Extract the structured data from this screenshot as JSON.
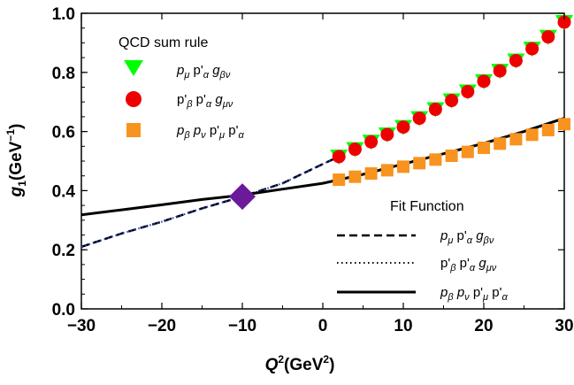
{
  "chart_data": {
    "type": "line",
    "xlabel": "Q²(GeV²)",
    "ylabel": "g₁(GeV⁻¹)",
    "xlim": [
      -30,
      30
    ],
    "ylim": [
      0,
      1.0
    ],
    "x_ticks": [
      "−30",
      "−20",
      "−10",
      "0",
      "10",
      "20",
      "30"
    ],
    "y_ticks": [
      "0.0",
      "0.2",
      "0.4",
      "0.6",
      "0.8",
      "1.0"
    ],
    "grid": false,
    "legend_sumrule": {
      "title": "QCD sum rule",
      "placement": "top-left",
      "entries": [
        "p_μ p'_α g_βν",
        "p'_β p'_α g_μν",
        "p_β p_ν p'_μ p'_α"
      ]
    },
    "legend_fit": {
      "title": "Fit Function",
      "placement": "bottom-right",
      "entries": [
        "p_μ p'_α g_βν",
        "p'_β p'_α g_μν",
        "p_β p_ν p'_μ p'_α"
      ]
    },
    "series": [
      {
        "kind": "points",
        "marker": "triangle-down",
        "color": "#00ff00",
        "x": [
          2,
          4,
          6,
          8,
          10,
          12,
          14,
          16,
          18,
          20,
          22,
          24,
          26,
          28,
          30
        ],
        "values": [
          0.515,
          0.54,
          0.565,
          0.59,
          0.615,
          0.645,
          0.675,
          0.705,
          0.735,
          0.77,
          0.805,
          0.84,
          0.88,
          0.92,
          0.97
        ]
      },
      {
        "kind": "points",
        "marker": "circle",
        "color": "#ee0000",
        "x": [
          2,
          4,
          6,
          8,
          10,
          12,
          14,
          16,
          18,
          20,
          22,
          24,
          26,
          28,
          30
        ],
        "values": [
          0.515,
          0.54,
          0.565,
          0.59,
          0.615,
          0.645,
          0.675,
          0.705,
          0.735,
          0.77,
          0.805,
          0.84,
          0.88,
          0.92,
          0.97
        ]
      },
      {
        "kind": "points",
        "marker": "square",
        "color": "#f7931e",
        "x": [
          2,
          4,
          6,
          8,
          10,
          12,
          14,
          16,
          18,
          20,
          22,
          24,
          26,
          28,
          30
        ],
        "values": [
          0.437,
          0.447,
          0.458,
          0.469,
          0.481,
          0.493,
          0.505,
          0.518,
          0.531,
          0.545,
          0.559,
          0.574,
          0.589,
          0.605,
          0.625
        ]
      },
      {
        "kind": "line",
        "style": "dashed",
        "color": "#000000",
        "x": [
          -30,
          -25,
          -20,
          -15,
          -10,
          -5,
          0,
          2
        ],
        "values": [
          0.21,
          0.255,
          0.295,
          0.34,
          0.38,
          0.425,
          0.49,
          0.515
        ]
      },
      {
        "kind": "line",
        "style": "dotted",
        "color": "#1f3fcf",
        "x": [
          -30,
          -25,
          -20,
          -15,
          -10,
          -5,
          0,
          2
        ],
        "values": [
          0.21,
          0.255,
          0.295,
          0.34,
          0.38,
          0.425,
          0.49,
          0.515
        ]
      },
      {
        "kind": "line",
        "style": "solid",
        "color": "#000000",
        "x": [
          -30,
          -25,
          -20,
          -15,
          -10,
          -5,
          0,
          5,
          10,
          15,
          20,
          25,
          30
        ],
        "values": [
          0.318,
          0.335,
          0.352,
          0.37,
          0.385,
          0.405,
          0.425,
          0.455,
          0.49,
          0.525,
          0.56,
          0.6,
          0.645
        ]
      }
    ],
    "annotation_point": {
      "marker": "diamond",
      "color": "#6a1b9a",
      "x": -10,
      "y": 0.38
    }
  }
}
